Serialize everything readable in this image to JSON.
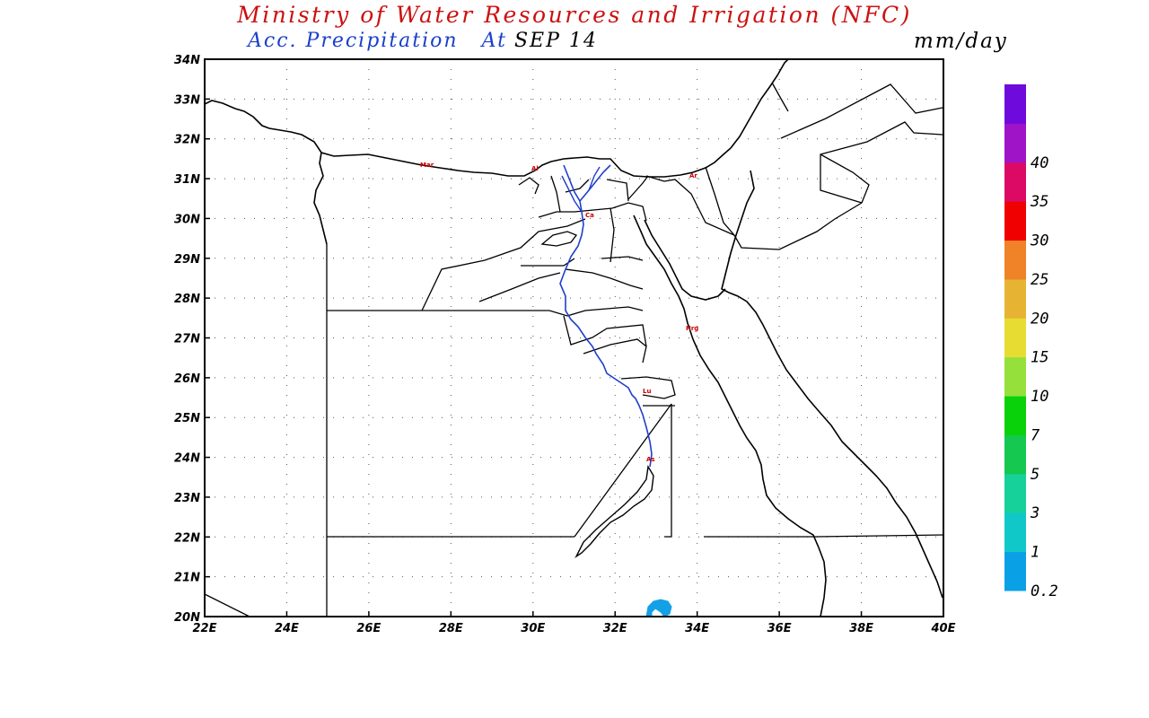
{
  "header": {
    "title": "Ministry of Water Resources and Irrigation (NFC)",
    "subtitle": "Acc. Precipitation",
    "at_label": "At",
    "date": "SEP 14",
    "units": "mm/day"
  },
  "map": {
    "lon_range": [
      22,
      40
    ],
    "lat_range": [
      20,
      34
    ],
    "lon_ticks": [
      "22E",
      "24E",
      "26E",
      "28E",
      "30E",
      "32E",
      "34E",
      "36E",
      "38E",
      "40E"
    ],
    "lat_ticks": [
      "20N",
      "21N",
      "22N",
      "23N",
      "24N",
      "25N",
      "26N",
      "27N",
      "28N",
      "29N",
      "30N",
      "31N",
      "32N",
      "33N",
      "34N"
    ],
    "grid": "dotted",
    "city_labels": [
      "Mar",
      "Al",
      "Ca",
      "Ar",
      "Hrg",
      "Lu",
      "As"
    ],
    "river_color": "#1f3fcc",
    "precip_color": "#14a0e6"
  },
  "colorbar": {
    "levels": [
      "0.2",
      "1",
      "3",
      "5",
      "7",
      "10",
      "15",
      "20",
      "25",
      "30",
      "35",
      "40"
    ],
    "colors": [
      "#0aa0e6",
      "#10c8c8",
      "#16d29a",
      "#14c850",
      "#0ad20a",
      "#96e03c",
      "#e6dc32",
      "#e6b432",
      "#f08228",
      "#f00000",
      "#dc0a64",
      "#a014c8",
      "#6e0adc"
    ]
  }
}
